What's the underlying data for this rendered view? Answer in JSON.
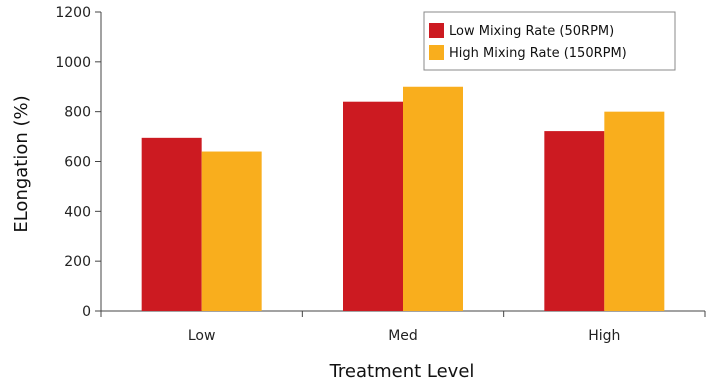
{
  "chart_data": {
    "type": "bar",
    "title": "",
    "xlabel": "Treatment Level",
    "ylabel": "ELongation (%)",
    "categories": [
      "Low",
      "Med",
      "High"
    ],
    "series": [
      {
        "name": "Low Mixing Rate (50RPM)",
        "values": [
          695,
          840,
          722
        ],
        "color": "#cc1a21"
      },
      {
        "name": "High Mixing Rate (150RPM)",
        "values": [
          640,
          900,
          800
        ],
        "color": "#f9ae1d"
      }
    ],
    "ylim": [
      0,
      1200
    ],
    "yticks": [
      0,
      200,
      400,
      600,
      800,
      1000,
      1200
    ],
    "grid": false,
    "legend_position": "top-right"
  }
}
